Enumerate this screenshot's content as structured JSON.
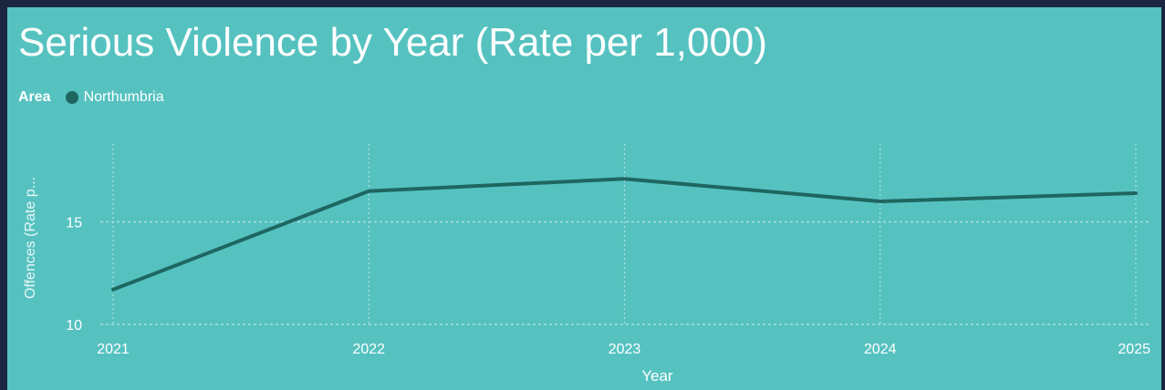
{
  "chart_data": {
    "type": "line",
    "title": "Serious Violence by Year (Rate per 1,000)",
    "legend_title": "Area",
    "legend_position": "top-left",
    "xlabel": "Year",
    "ylabel": "Offences (Rate p...",
    "categories": [
      "2021",
      "2022",
      "2023",
      "2024",
      "2025"
    ],
    "series": [
      {
        "name": "Northumbria",
        "color": "#1f6660",
        "values": [
          11.7,
          16.5,
          17.1,
          16.0,
          16.4
        ]
      }
    ],
    "yticks": [
      10,
      15
    ],
    "ylim": [
      10,
      18.8
    ],
    "grid": true
  },
  "colors": {
    "background": "#55c2c0",
    "frame": "#1b2740",
    "text": "#ffffff",
    "gridline": "#a9e0de"
  }
}
